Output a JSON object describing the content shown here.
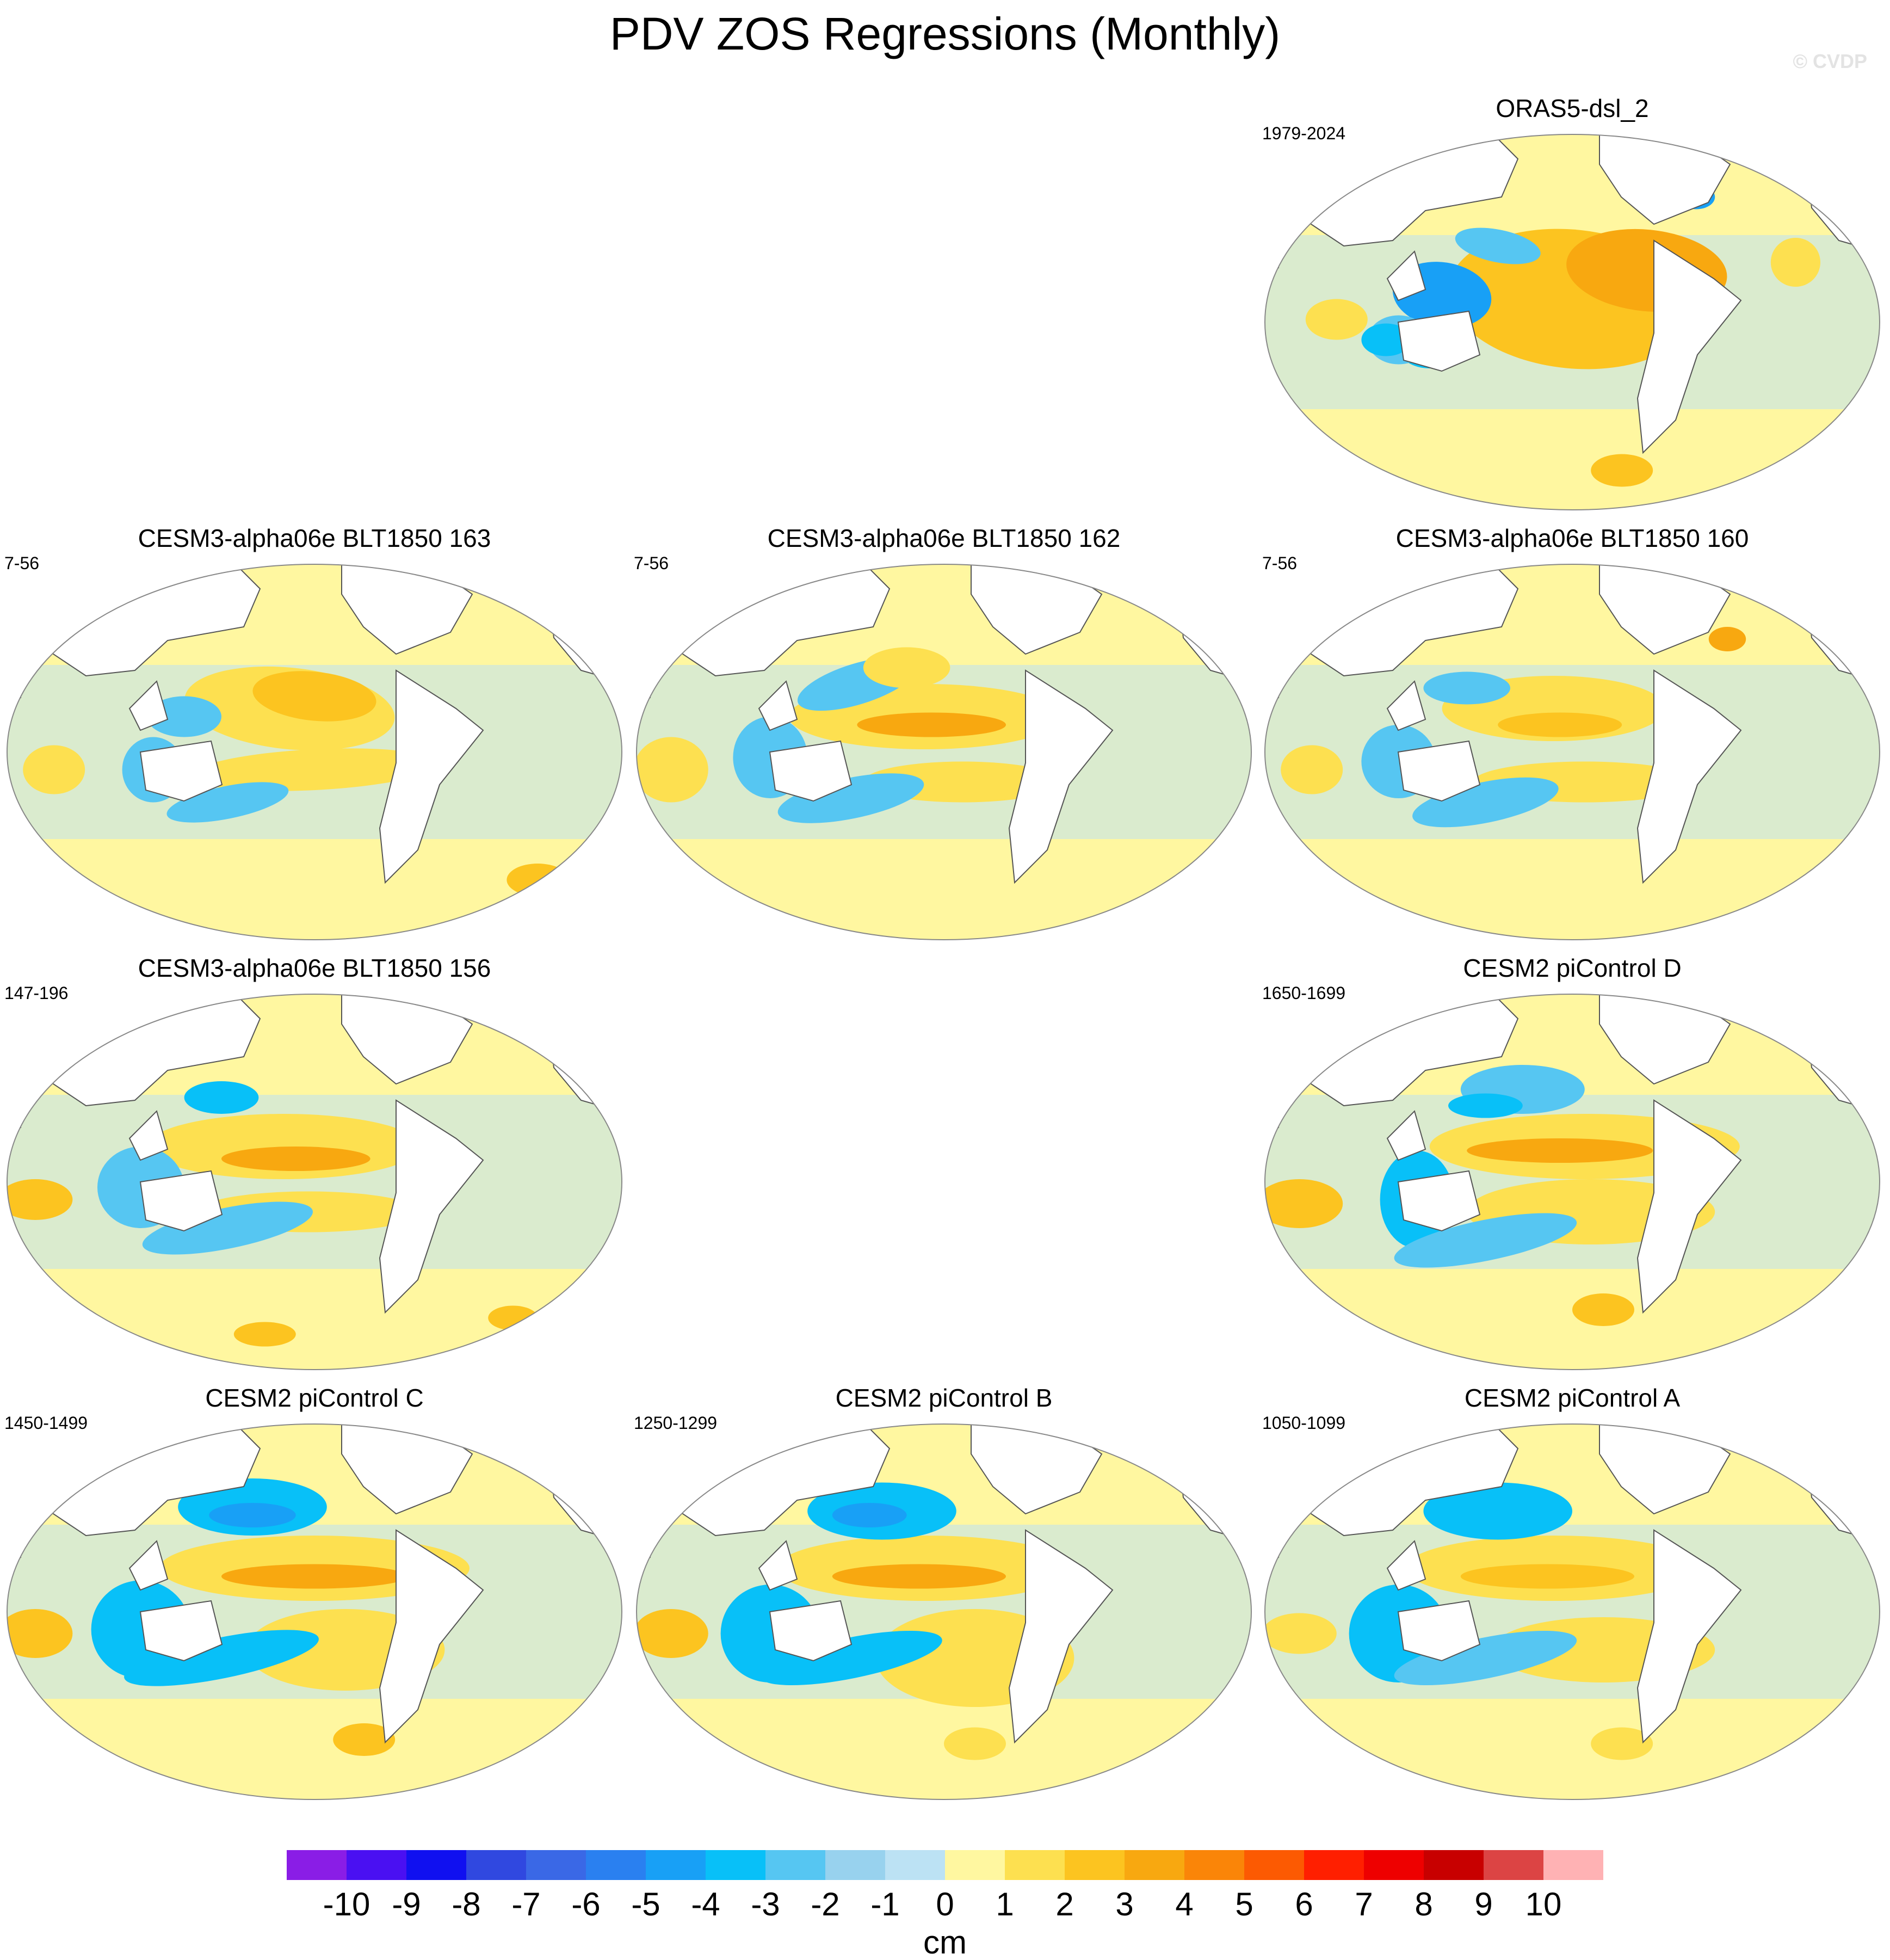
{
  "figure": {
    "title": "PDV ZOS Regressions (Monthly)",
    "watermark": "© CVDP"
  },
  "chart_data": {
    "type": "heatmap",
    "description_kind": "global map panels of sea-surface-height regression onto PDV index",
    "units": "cm",
    "panels": [
      {
        "id": "orasp",
        "title": "ORAS5-dsl_2",
        "years": "1979-2024",
        "pattern": "obs"
      },
      {
        "id": "p163",
        "title": "CESM3-alpha06e BLT1850 163",
        "years": "7-56",
        "pattern": "m1"
      },
      {
        "id": "p162",
        "title": "CESM3-alpha06e BLT1850 162",
        "years": "7-56",
        "pattern": "m2"
      },
      {
        "id": "p160",
        "title": "CESM3-alpha06e BLT1850 160",
        "years": "7-56",
        "pattern": "m3"
      },
      {
        "id": "p156",
        "title": "CESM3-alpha06e BLT1850 156",
        "years": "147-196",
        "pattern": "m4"
      },
      {
        "id": "pD",
        "title": "CESM2 piControl D",
        "years": "1650-1699",
        "pattern": "c1"
      },
      {
        "id": "pC",
        "title": "CESM2 piControl C",
        "years": "1450-1499",
        "pattern": "c2"
      },
      {
        "id": "pB",
        "title": "CESM2 piControl B",
        "years": "1250-1299",
        "pattern": "c3"
      },
      {
        "id": "pA",
        "title": "CESM2 piControl A",
        "years": "1050-1099",
        "pattern": "c4"
      }
    ],
    "colorbar": {
      "labels": [
        "-10",
        "-9",
        "-8",
        "-7",
        "-6",
        "-5",
        "-4",
        "-3",
        "-2",
        "-1",
        "0",
        "1",
        "2",
        "3",
        "4",
        "5",
        "6",
        "7",
        "8",
        "9",
        "10"
      ],
      "colors": [
        "#8a1de6",
        "#4a10f2",
        "#1010f0",
        "#3048e0",
        "#3a68e6",
        "#2a80f0",
        "#18a0f6",
        "#08c0f8",
        "#56c6f2",
        "#98d2ee",
        "#bce2f4",
        "#fff7a0",
        "#fde050",
        "#fcc420",
        "#f8a810",
        "#fa8508",
        "#fc5a02",
        "#ff1f00",
        "#ee0000",
        "#c80000",
        "#dc4444",
        "#ffb2b4"
      ],
      "unit_label": "cm"
    }
  }
}
